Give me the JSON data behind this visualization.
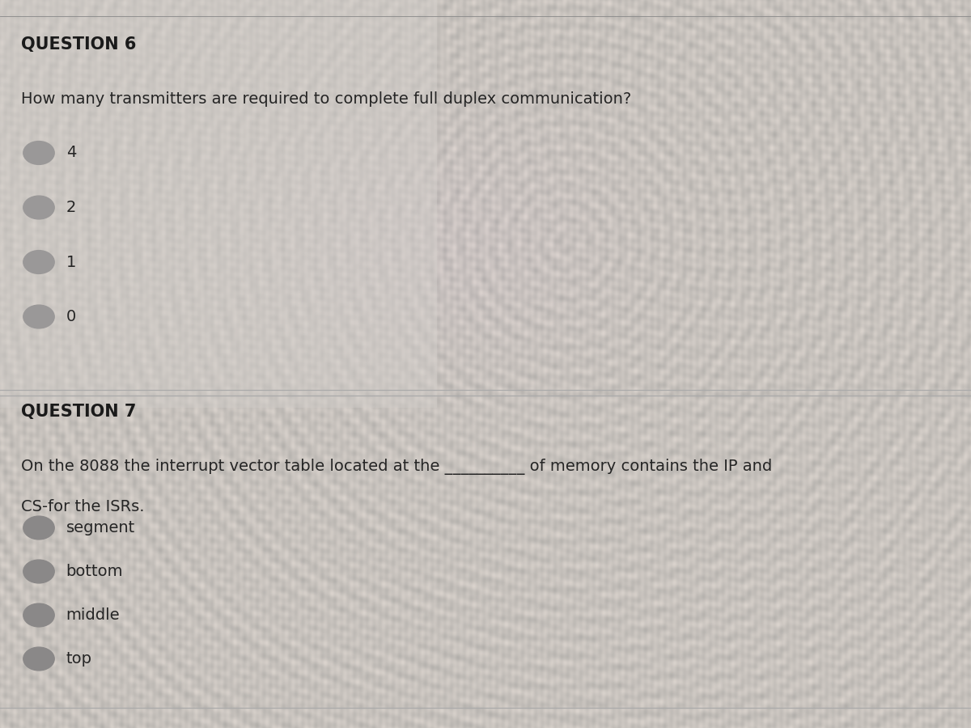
{
  "bg_color_light": "#d0ccca",
  "bg_color_main": "#c8c4c2",
  "text_color": "#252525",
  "title_color": "#1a1a1a",
  "question6_title": "QUESTION 6",
  "question6_body": "How many transmitters are required to complete full duplex communication?",
  "question6_options": [
    "4",
    "2",
    "1",
    "0"
  ],
  "question7_title": "QUESTION 7",
  "question7_body_line1": "On the 8088 the interrupt vector table located at the __________ of memory contains the IP and",
  "question7_body_line2": "CS‐for the ISRs.",
  "question7_options": [
    "segment",
    "bottom",
    "middle",
    "top"
  ],
  "radio_color_q6": "#9a9898",
  "radio_color_q7": "#8a8888",
  "divider_color": "#aaaaaa",
  "title_fontsize": 15,
  "body_fontsize": 14,
  "option_fontsize": 14
}
